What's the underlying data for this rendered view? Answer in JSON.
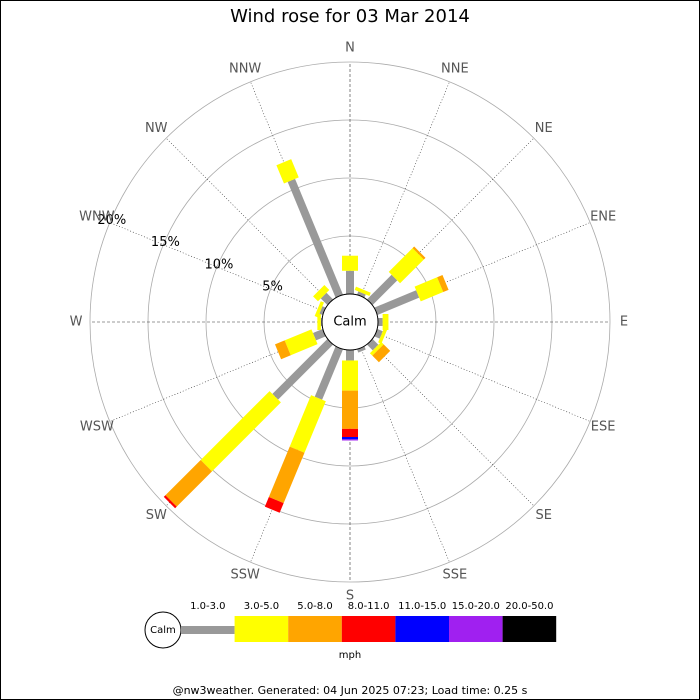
{
  "chart_data": {
    "type": "windrose",
    "title": "Wind rose for 03 Mar 2014",
    "categories": [
      "N",
      "NNE",
      "NE",
      "ENE",
      "E",
      "ESE",
      "SE",
      "SSE",
      "S",
      "SSW",
      "SW",
      "WSW",
      "W",
      "WNW",
      "NW",
      "NNW"
    ],
    "series": [
      {
        "name": "1.0-3.0",
        "color": "#999999",
        "values": [
          2.0,
          0.3,
          3.0,
          3.9,
          0.4,
          0.5,
          0.7,
          0.3,
          0.9,
          4.7,
          6.7,
          0.9,
          0.1,
          0.3,
          0.8,
          10.8
        ]
      },
      {
        "name": "3.0-5.0",
        "color": "#ffff00",
        "values": [
          1.3,
          0.3,
          2.9,
          2.1,
          0.5,
          0.3,
          0.3,
          0,
          2.6,
          4.8,
          8.4,
          2.5,
          0.3,
          0.3,
          0.6,
          1.7
        ]
      },
      {
        "name": "5.0-8.0",
        "color": "#ffa500",
        "values": [
          0,
          0,
          0.2,
          0.5,
          0,
          0,
          0.8,
          0,
          3.3,
          4.7,
          4.3,
          0.9,
          0,
          0,
          0,
          0
        ]
      },
      {
        "name": "8.0-11.0",
        "color": "#ff0000",
        "values": [
          0,
          0,
          0,
          0,
          0,
          0,
          0,
          0,
          0.7,
          0.9,
          0.2,
          0,
          0,
          0,
          0,
          0
        ]
      },
      {
        "name": "11.0-15.0",
        "color": "#0000ff",
        "values": [
          0,
          0,
          0,
          0,
          0,
          0,
          0,
          0,
          0.2,
          0,
          0,
          0,
          0,
          0,
          0,
          0
        ]
      },
      {
        "name": "15.0-20.0",
        "color": "#a020f0",
        "values": [
          0,
          0,
          0,
          0,
          0,
          0,
          0,
          0,
          0.1,
          0,
          0,
          0,
          0,
          0,
          0,
          0
        ]
      },
      {
        "name": "20.0-50.0",
        "color": "#000000",
        "values": [
          0,
          0,
          0,
          0,
          0,
          0,
          0,
          0,
          0,
          0,
          0,
          0,
          0,
          0,
          0,
          0
        ]
      }
    ],
    "rlim": [
      0,
      20
    ],
    "rticks": [
      {
        "value": 5,
        "label": "5%"
      },
      {
        "value": 10,
        "label": "10%"
      },
      {
        "value": 15,
        "label": "15%"
      },
      {
        "value": 20,
        "label": "20%"
      }
    ],
    "calm_label": "Calm",
    "unit": "mph",
    "footer": "@nw3weather. Generated: 04 Jun 2025 07:23; Load time: 0.25 s"
  }
}
